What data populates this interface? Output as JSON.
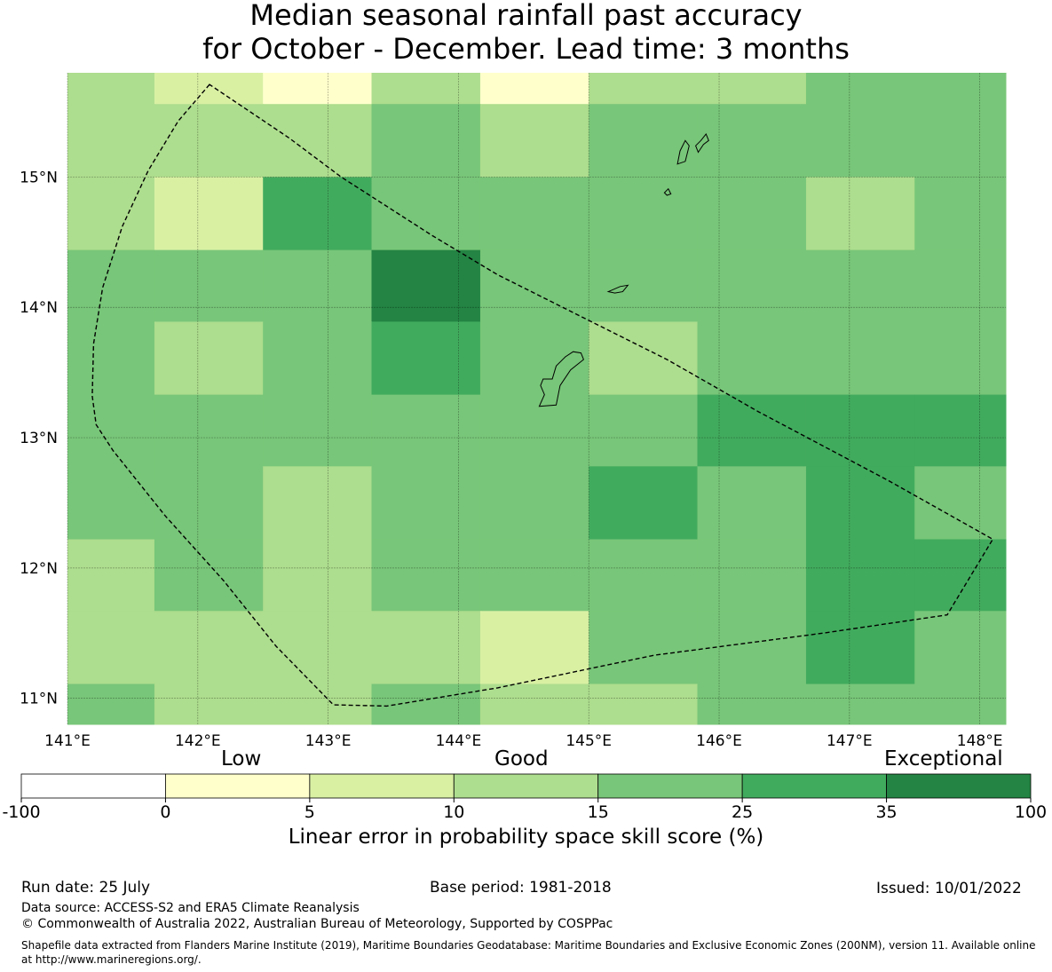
{
  "title": {
    "line1": "Median seasonal rainfall past accuracy",
    "line2": "for October - December. Lead time: 3 months"
  },
  "map": {
    "lat_ticks": [
      "11°N",
      "12°N",
      "13°N",
      "14°N",
      "15°N"
    ],
    "lon_ticks": [
      "141°E",
      "142°E",
      "143°E",
      "144°E",
      "145°E",
      "146°E",
      "147°E",
      "148°E"
    ],
    "lat_tick_values": [
      11,
      12,
      13,
      14,
      15
    ],
    "lon_tick_values": [
      141,
      142,
      143,
      144,
      145,
      146,
      147,
      148
    ],
    "extent": {
      "lon_min": 141,
      "lon_max": 148.2,
      "lat_min": 10.8,
      "lat_max": 15.8
    },
    "grid_lon_edges": [
      141,
      141.667,
      142.5,
      143.333,
      144.167,
      145,
      145.833,
      146.667,
      147.5,
      148.2
    ],
    "grid_lat_edges": [
      15.8,
      15.56,
      15.0,
      14.44,
      13.89,
      13.33,
      12.78,
      12.22,
      11.67,
      11.11,
      10.8
    ],
    "category_grid": [
      [
        3,
        2,
        1,
        3,
        1,
        3,
        3,
        4,
        4
      ],
      [
        3,
        3,
        3,
        4,
        3,
        4,
        4,
        4,
        4
      ],
      [
        3,
        2,
        5,
        4,
        4,
        4,
        4,
        3,
        4
      ],
      [
        4,
        4,
        4,
        6,
        4,
        4,
        4,
        4,
        4
      ],
      [
        4,
        3,
        4,
        5,
        4,
        3,
        4,
        4,
        4
      ],
      [
        4,
        4,
        4,
        4,
        4,
        4,
        5,
        5,
        5
      ],
      [
        4,
        4,
        3,
        4,
        4,
        5,
        4,
        5,
        4
      ],
      [
        3,
        4,
        3,
        4,
        4,
        4,
        4,
        5,
        5
      ],
      [
        3,
        3,
        3,
        3,
        2,
        4,
        4,
        5,
        4
      ],
      [
        4,
        3,
        3,
        4,
        3,
        3,
        4,
        4,
        4
      ]
    ],
    "eez_boundary": [
      [
        142.09,
        15.71
      ],
      [
        141.85,
        15.43
      ],
      [
        141.62,
        15.05
      ],
      [
        141.42,
        14.62
      ],
      [
        141.27,
        14.15
      ],
      [
        141.2,
        13.72
      ],
      [
        141.19,
        13.32
      ],
      [
        141.22,
        13.1
      ],
      [
        141.35,
        12.9
      ],
      [
        141.75,
        12.4
      ],
      [
        142.2,
        11.9
      ],
      [
        142.6,
        11.4
      ],
      [
        143.04,
        10.95
      ],
      [
        143.45,
        10.94
      ],
      [
        144.3,
        11.08
      ],
      [
        145.5,
        11.33
      ],
      [
        146.8,
        11.5
      ],
      [
        147.75,
        11.64
      ],
      [
        148.1,
        12.22
      ],
      [
        147.3,
        12.67
      ],
      [
        146.3,
        13.2
      ],
      [
        145.6,
        13.6
      ],
      [
        145.1,
        13.85
      ],
      [
        144.3,
        14.25
      ],
      [
        143.8,
        14.55
      ],
      [
        143.1,
        15.0
      ],
      [
        142.7,
        15.3
      ]
    ],
    "land": {
      "guam": [
        [
          144.62,
          13.24
        ],
        [
          144.75,
          13.25
        ],
        [
          144.78,
          13.4
        ],
        [
          144.86,
          13.52
        ],
        [
          144.96,
          13.6
        ],
        [
          144.94,
          13.65
        ],
        [
          144.88,
          13.66
        ],
        [
          144.82,
          13.62
        ],
        [
          144.75,
          13.55
        ],
        [
          144.72,
          13.45
        ],
        [
          144.65,
          13.45
        ],
        [
          144.63,
          13.4
        ],
        [
          144.66,
          13.33
        ]
      ],
      "rota": [
        [
          145.15,
          14.12
        ],
        [
          145.24,
          14.16
        ],
        [
          145.3,
          14.17
        ],
        [
          145.26,
          14.12
        ],
        [
          145.2,
          14.11
        ]
      ],
      "tinian": [
        [
          145.58,
          14.88
        ],
        [
          145.61,
          14.91
        ],
        [
          145.63,
          14.87
        ],
        [
          145.6,
          14.86
        ]
      ],
      "saipan": [
        [
          145.68,
          15.1
        ],
        [
          145.74,
          15.12
        ],
        [
          145.77,
          15.24
        ],
        [
          145.74,
          15.28
        ],
        [
          145.7,
          15.2
        ]
      ],
      "saipan_north": [
        [
          145.84,
          15.19
        ],
        [
          145.88,
          15.25
        ],
        [
          145.92,
          15.28
        ],
        [
          145.9,
          15.33
        ],
        [
          145.86,
          15.28
        ],
        [
          145.82,
          15.24
        ]
      ]
    }
  },
  "legend": {
    "category_labels": {
      "low": "Low",
      "good": "Good",
      "exceptional": "Exceptional"
    },
    "tick_labels": [
      "-100",
      "0",
      "5",
      "10",
      "15",
      "25",
      "35",
      "100"
    ],
    "colors": [
      "#ffffff",
      "#ffffcc",
      "#d9f0a3",
      "#addd8e",
      "#78c679",
      "#41ab5d",
      "#238443"
    ],
    "label": "Linear error in probability space skill score (%)"
  },
  "footer": {
    "run_date": "Run date: 25 July",
    "base_period": "Base period: 1981-2018",
    "issued": "Issued: 10/01/2022",
    "data_source": "Data source: ACCESS-S2 and ERA5 Climate Reanalysis",
    "copyright": "© Commonwealth of Australia 2022, Australian Bureau of Meteorology, Supported by COSPPac",
    "shapefile": "Shapefile data extracted from Flanders Marine Institute (2019), Maritime Boundaries Geodatabase: Maritime Boundaries and Exclusive Economic Zones (200NM), version 11. Available online at http://www.marineregions.org/."
  }
}
